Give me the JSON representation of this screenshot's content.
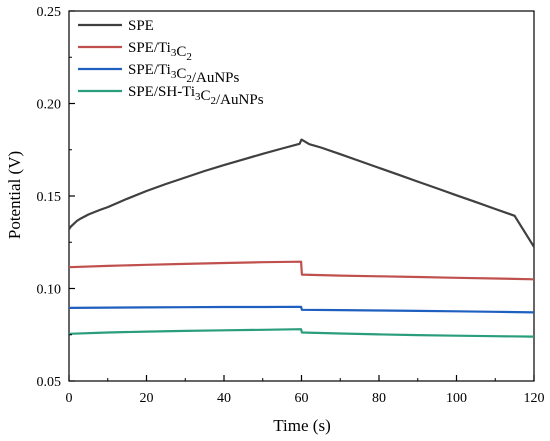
{
  "chart_data": {
    "type": "line",
    "title": "",
    "xlabel": "Time (s)",
    "ylabel": "Potential (V)",
    "xlim": [
      0,
      120
    ],
    "ylim": [
      0.05,
      0.25
    ],
    "xticks": [
      0,
      20,
      40,
      60,
      80,
      100,
      120
    ],
    "yticks": [
      0.05,
      0.1,
      0.15,
      0.2,
      0.25
    ],
    "xtick_labels": [
      "0",
      "20",
      "40",
      "60",
      "80",
      "100",
      "120"
    ],
    "ytick_labels": [
      "0.05",
      "0.10",
      "0.15",
      "0.20",
      "0.25"
    ],
    "grid": false,
    "legend_position": "top-left",
    "series": [
      {
        "name": "SPE",
        "legend_parts": [
          [
            "SPE",
            "n"
          ]
        ],
        "color": "#404040",
        "x": [
          0,
          0.5,
          1,
          2,
          3,
          5,
          8,
          10,
          15,
          20,
          25,
          30,
          35,
          40,
          45,
          50,
          55,
          59.5,
          60,
          62,
          65,
          70,
          75,
          80,
          85,
          90,
          95,
          100,
          105,
          110,
          115,
          120
        ],
        "y": [
          0.132,
          0.1335,
          0.1345,
          0.1365,
          0.1378,
          0.14,
          0.1425,
          0.144,
          0.1485,
          0.1527,
          0.1565,
          0.16,
          0.1635,
          0.1667,
          0.1698,
          0.1728,
          0.1757,
          0.1782,
          0.1805,
          0.178,
          0.1762,
          0.1726,
          0.1689,
          0.1652,
          0.1615,
          0.1578,
          0.1541,
          0.1504,
          0.1467,
          0.143,
          0.1393,
          0.1225
        ]
      },
      {
        "name": "SPE/Ti3C2",
        "legend_parts": [
          [
            "SPE/Ti",
            "n"
          ],
          [
            "3",
            "sub"
          ],
          [
            "C",
            "n"
          ],
          [
            "2",
            "sub"
          ]
        ],
        "color": "#c0504d",
        "x": [
          0,
          10,
          20,
          30,
          40,
          50,
          59.9,
          60.1,
          70,
          80,
          90,
          100,
          110,
          120
        ],
        "y": [
          0.1115,
          0.1122,
          0.1128,
          0.1133,
          0.1138,
          0.1142,
          0.1145,
          0.1075,
          0.107,
          0.1066,
          0.1062,
          0.1058,
          0.1054,
          0.105
        ]
      },
      {
        "name": "SPE/Ti3C2/AuNPs",
        "legend_parts": [
          [
            "SPE/Ti",
            "n"
          ],
          [
            "3",
            "sub"
          ],
          [
            "C",
            "n"
          ],
          [
            "2",
            "sub"
          ],
          [
            "/AuNPs",
            "n"
          ]
        ],
        "color": "#1f5fbf",
        "x": [
          0,
          10,
          20,
          30,
          40,
          50,
          59.9,
          60.1,
          70,
          80,
          90,
          100,
          110,
          120
        ],
        "y": [
          0.0895,
          0.0897,
          0.0898,
          0.0899,
          0.09,
          0.09,
          0.0901,
          0.0885,
          0.0883,
          0.0881,
          0.0879,
          0.0877,
          0.0874,
          0.0871
        ]
      },
      {
        "name": "SPE/SH-Ti3C2/AuNPs",
        "legend_parts": [
          [
            "SPE/SH-Ti",
            "n"
          ],
          [
            "3",
            "sub"
          ],
          [
            "C",
            "n"
          ],
          [
            "2",
            "sub"
          ],
          [
            "/AuNPs",
            "n"
          ]
        ],
        "color": "#2a9d7c",
        "x": [
          0,
          10,
          20,
          30,
          40,
          50,
          59.9,
          60.1,
          70,
          80,
          90,
          100,
          110,
          120
        ],
        "y": [
          0.0755,
          0.0762,
          0.0767,
          0.0771,
          0.0774,
          0.0777,
          0.078,
          0.0762,
          0.0757,
          0.0752,
          0.0748,
          0.0745,
          0.0742,
          0.074
        ]
      }
    ]
  }
}
